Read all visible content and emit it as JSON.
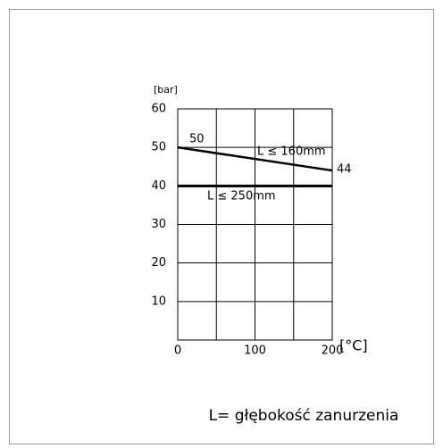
{
  "chart_data": {
    "type": "line",
    "y_label": "[bar]",
    "x_label": "[°C]",
    "caption": "L= głębokość zanurzenia",
    "series": [
      {
        "name": "L ≤ 160mm",
        "color": "#000000",
        "x": [
          0,
          200
        ],
        "values": [
          50,
          44
        ]
      },
      {
        "name": "L ≤ 250mm",
        "color": "#000000",
        "x": [
          0,
          200
        ],
        "values": [
          40,
          40
        ]
      }
    ],
    "xlim": [
      0,
      200
    ],
    "xticks": [
      0,
      100,
      200
    ],
    "xminor": [
      50,
      150
    ],
    "ylim": [
      0,
      60
    ],
    "yticks": [
      10,
      20,
      30,
      40,
      50,
      60
    ],
    "grid": true
  }
}
